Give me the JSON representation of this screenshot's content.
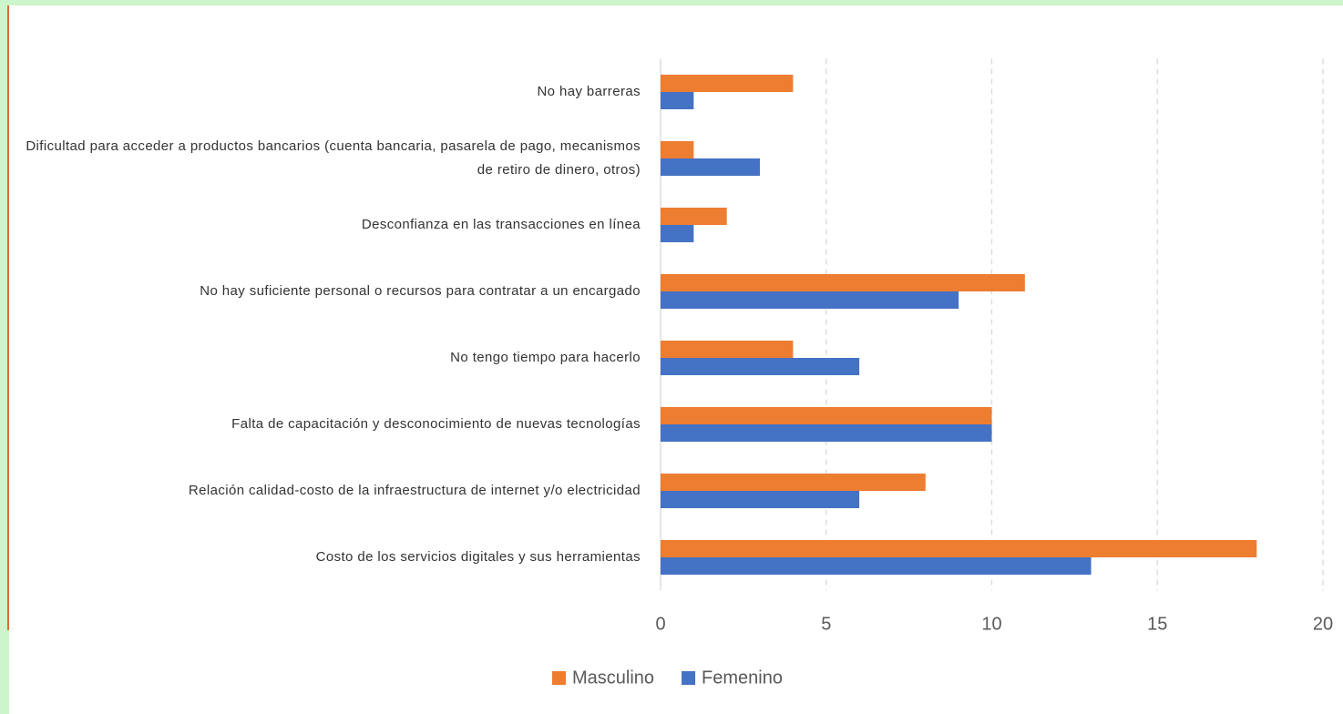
{
  "chart_data": {
    "type": "bar",
    "orientation": "horizontal",
    "categories": [
      "No hay barreras",
      "Dificultad para acceder a productos bancarios (cuenta bancaria, pasarela de pago, mecanismos de retiro de dinero, otros)",
      "Desconfianza en las transacciones en línea",
      "No hay suficiente personal o recursos para contratar a un encargado",
      "No tengo tiempo para hacerlo",
      "Falta de capacitación y desconocimiento de nuevas tecnologías",
      "Relación calidad-costo de la infraestructura de internet y/o electricidad",
      "Costo de los servicios digitales y sus herramientas"
    ],
    "series": [
      {
        "name": "Masculino",
        "color": "#ed7d31",
        "values": [
          4,
          1,
          2,
          11,
          4,
          10,
          8,
          18
        ]
      },
      {
        "name": "Femenino",
        "color": "#4472c4",
        "values": [
          1,
          3,
          1,
          9,
          6,
          10,
          6,
          13
        ]
      }
    ],
    "xlim": [
      0,
      20
    ],
    "xticks": [
      0,
      5,
      10,
      15,
      20
    ],
    "grid": true,
    "legend": "bottom"
  }
}
